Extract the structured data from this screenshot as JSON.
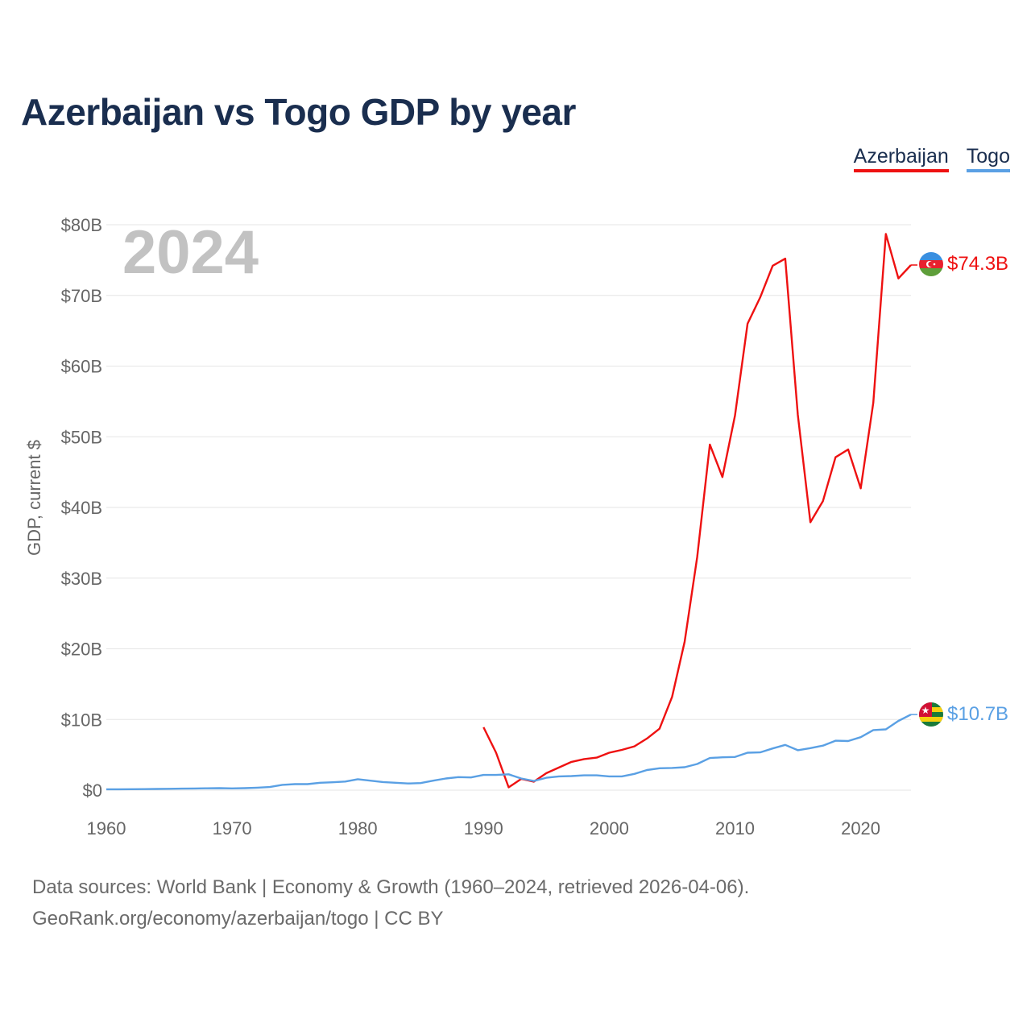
{
  "title": "Azerbaijan vs Togo GDP by year",
  "legend": {
    "azerbaijan": "Azerbaijan",
    "togo": "Togo"
  },
  "year_label": "2024",
  "source": {
    "line1": "Data sources: World Bank | Economy & Growth (1960–2024, retrieved 2026-04-06).",
    "line2": "GeoRank.org/economy/azerbaijan/togo | CC BY"
  },
  "colors": {
    "azerbaijan": "#ee1111",
    "togo": "#5aa0e4",
    "grid": "#e6e6e6",
    "title": "#1a2e4f"
  },
  "chart_data": {
    "type": "line",
    "title": "Azerbaijan vs Togo GDP by year",
    "xlabel": "",
    "ylabel": "GDP, current $",
    "xlim": [
      1960,
      2024
    ],
    "ylim": [
      0,
      80
    ],
    "x_ticks": [
      1960,
      1970,
      1980,
      1990,
      2000,
      2010,
      2020
    ],
    "y_ticks": [
      0,
      10,
      20,
      30,
      40,
      50,
      60,
      70,
      80
    ],
    "y_tick_labels": [
      "$0",
      "$10B",
      "$20B",
      "$30B",
      "$40B",
      "$50B",
      "$60B",
      "$70B",
      "$80B"
    ],
    "grid": true,
    "legend_position": "top-right",
    "series": [
      {
        "name": "Azerbaijan",
        "color": "#ee1111",
        "end_label": "$74.3B",
        "flag": "azerbaijan-flag",
        "x": [
          1990,
          1991,
          1992,
          1993,
          1994,
          1995,
          1996,
          1997,
          1998,
          1999,
          2000,
          2001,
          2002,
          2003,
          2004,
          2005,
          2006,
          2007,
          2008,
          2009,
          2010,
          2011,
          2012,
          2013,
          2014,
          2015,
          2016,
          2017,
          2018,
          2019,
          2020,
          2021,
          2022,
          2023,
          2024
        ],
        "values": [
          8.9,
          5.3,
          0.4,
          1.6,
          1.2,
          2.4,
          3.2,
          4.0,
          4.4,
          4.6,
          5.3,
          5.7,
          6.2,
          7.3,
          8.7,
          13.2,
          21.0,
          33.0,
          48.9,
          44.3,
          53.0,
          66.0,
          69.7,
          74.2,
          75.2,
          53.1,
          37.9,
          40.9,
          47.1,
          48.2,
          42.7,
          54.8,
          78.7,
          72.4,
          74.3
        ]
      },
      {
        "name": "Togo",
        "color": "#5aa0e4",
        "end_label": "$10.7B",
        "flag": "togo-flag",
        "x": [
          1960,
          1961,
          1962,
          1963,
          1964,
          1965,
          1966,
          1967,
          1968,
          1969,
          1970,
          1971,
          1972,
          1973,
          1974,
          1975,
          1976,
          1977,
          1978,
          1979,
          1980,
          1981,
          1982,
          1983,
          1984,
          1985,
          1986,
          1987,
          1988,
          1989,
          1990,
          1991,
          1992,
          1993,
          1994,
          1995,
          1996,
          1997,
          1998,
          1999,
          2000,
          2001,
          2002,
          2003,
          2004,
          2005,
          2006,
          2007,
          2008,
          2009,
          2010,
          2011,
          2012,
          2013,
          2014,
          2015,
          2016,
          2017,
          2018,
          2019,
          2020,
          2021,
          2022,
          2023,
          2024
        ],
        "values": [
          0.12,
          0.13,
          0.14,
          0.15,
          0.17,
          0.19,
          0.22,
          0.24,
          0.26,
          0.28,
          0.25,
          0.29,
          0.35,
          0.45,
          0.75,
          0.85,
          0.85,
          1.05,
          1.12,
          1.22,
          1.55,
          1.35,
          1.15,
          1.05,
          0.95,
          1.0,
          1.35,
          1.65,
          1.85,
          1.8,
          2.15,
          2.15,
          2.25,
          1.65,
          1.3,
          1.75,
          1.95,
          2.0,
          2.1,
          2.1,
          1.95,
          1.95,
          2.3,
          2.85,
          3.1,
          3.15,
          3.25,
          3.7,
          4.55,
          4.65,
          4.7,
          5.3,
          5.35,
          5.9,
          6.4,
          5.65,
          5.95,
          6.3,
          7.0,
          6.95,
          7.5,
          8.5,
          8.6,
          9.8,
          10.7
        ]
      }
    ]
  }
}
